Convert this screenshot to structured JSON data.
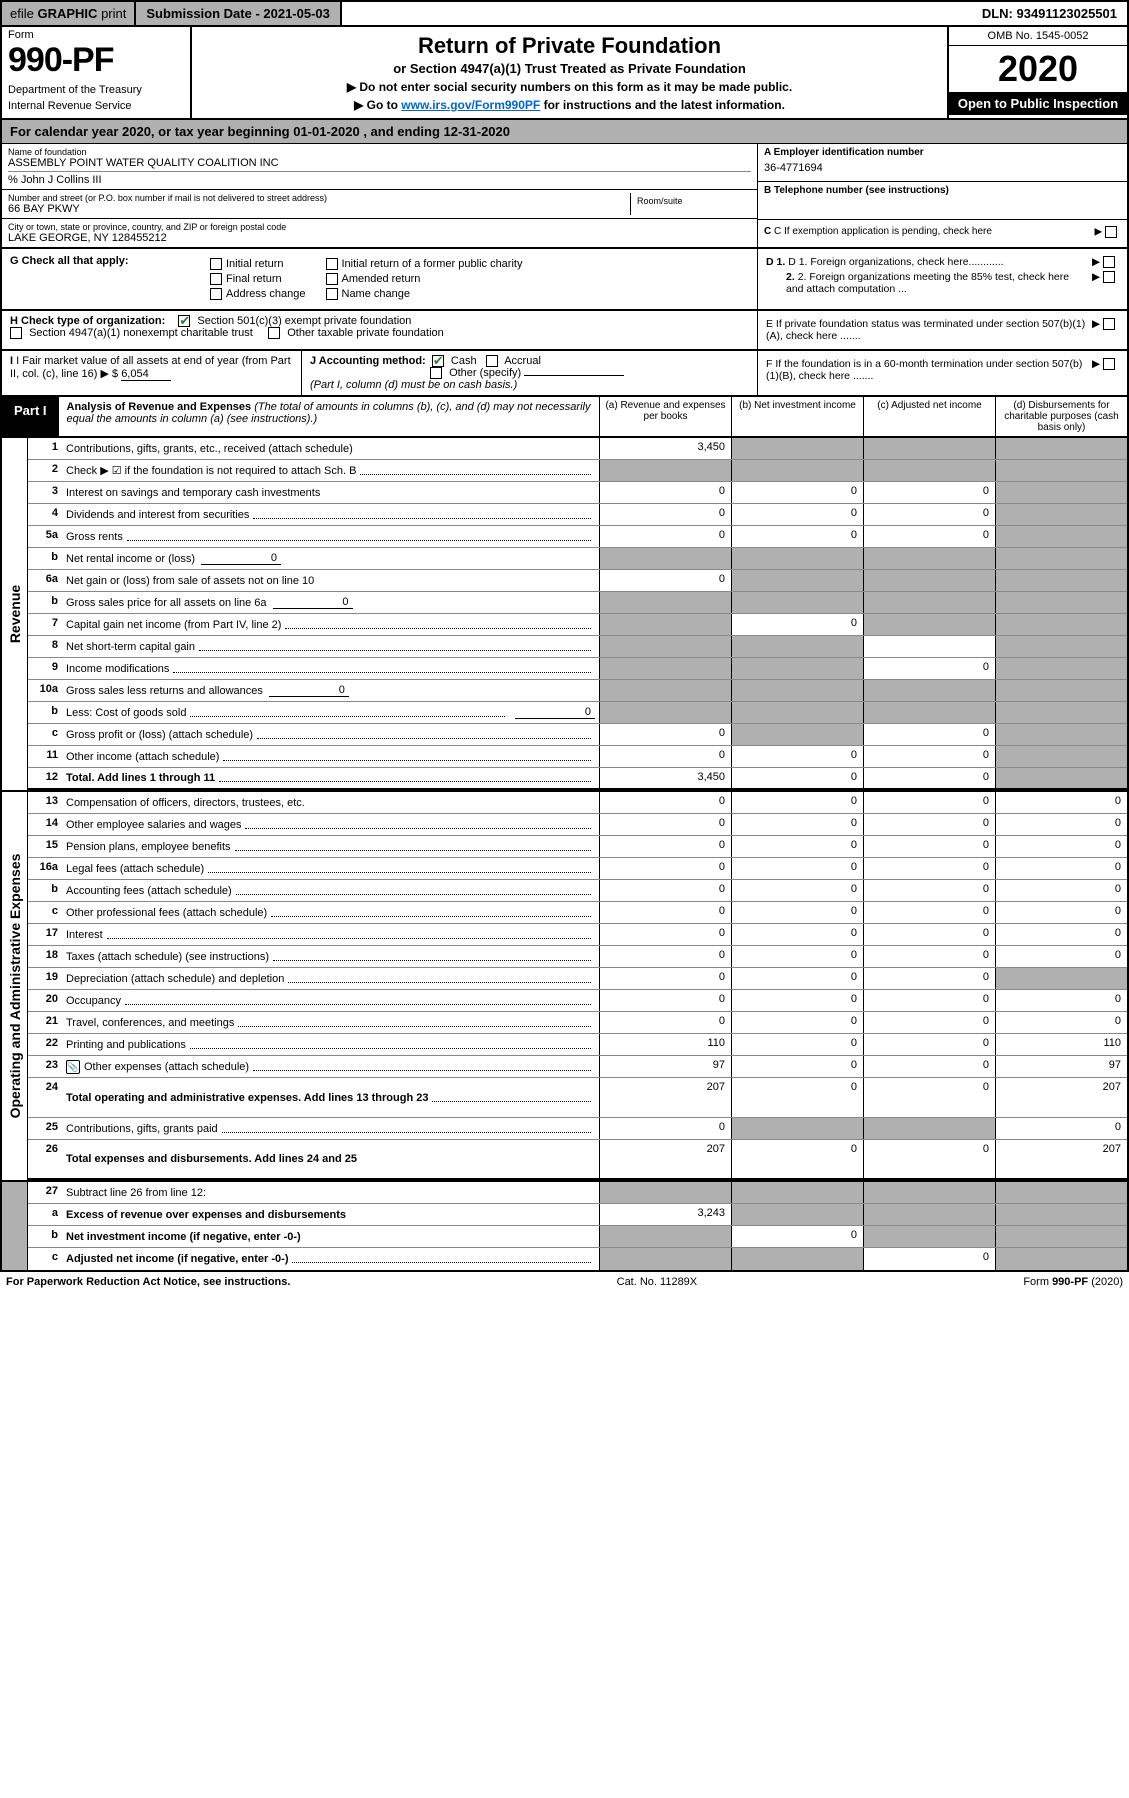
{
  "top": {
    "efile_prefix": "efile",
    "efile_bold": "GRAPHIC",
    "efile_suffix": "print",
    "submission": "Submission Date - 2021-05-03",
    "dln": "DLN: 93491123025501"
  },
  "header": {
    "form_label": "Form",
    "form_number": "990-PF",
    "dept1": "Department of the Treasury",
    "dept2": "Internal Revenue Service",
    "title": "Return of Private Foundation",
    "subtitle": "or Section 4947(a)(1) Trust Treated as Private Foundation",
    "note1": "▶ Do not enter social security numbers on this form as it may be made public.",
    "note2_pre": "▶ Go to ",
    "note2_link": "www.irs.gov/Form990PF",
    "note2_post": " for instructions and the latest information.",
    "omb": "OMB No. 1545-0052",
    "year": "2020",
    "inspect": "Open to Public Inspection"
  },
  "calyear": "For calendar year 2020, or tax year beginning 01-01-2020                              , and ending 12-31-2020",
  "entity": {
    "name_lbl": "Name of foundation",
    "name": "ASSEMBLY POINT WATER QUALITY COALITION INC",
    "care_of": "% John J Collins III",
    "addr_lbl": "Number and street (or P.O. box number if mail is not delivered to street address)",
    "addr": "66 BAY PKWY",
    "room_lbl": "Room/suite",
    "city_lbl": "City or town, state or province, country, and ZIP or foreign postal code",
    "city": "LAKE GEORGE, NY  128455212",
    "a_lbl": "A Employer identification number",
    "ein": "36-4771694",
    "b_lbl": "B Telephone number (see instructions)",
    "c_lbl": "C If exemption application is pending, check here",
    "d1": "D 1. Foreign organizations, check here............",
    "d2": "2. Foreign organizations meeting the 85% test, check here and attach computation ...",
    "e": "E  If private foundation status was terminated under section 507(b)(1)(A), check here .......",
    "f": "F  If the foundation is in a 60-month termination under section 507(b)(1)(B), check here ......."
  },
  "g": {
    "label": "G Check all that apply:",
    "opts": [
      "Initial return",
      "Final return",
      "Address change",
      "Initial return of a former public charity",
      "Amended return",
      "Name change"
    ]
  },
  "h": {
    "label": "H Check type of organization:",
    "opt1": "Section 501(c)(3) exempt private foundation",
    "opt2": "Section 4947(a)(1) nonexempt charitable trust",
    "opt3": "Other taxable private foundation"
  },
  "i": {
    "label": "I Fair market value of all assets at end of year (from Part II, col. (c), line 16)",
    "prefix": "▶ $",
    "value": "6,054"
  },
  "j": {
    "label": "J Accounting method:",
    "cash": "Cash",
    "accrual": "Accrual",
    "other": "Other (specify)",
    "note": "(Part I, column (d) must be on cash basis.)"
  },
  "part1": {
    "label": "Part I",
    "title": "Analysis of Revenue and Expenses",
    "title_note": " (The total of amounts in columns (b), (c), and (d) may not necessarily equal the amounts in column (a) (see instructions).)",
    "col_a": "(a)   Revenue and expenses per books",
    "col_b": "(b)   Net investment income",
    "col_c": "(c)   Adjusted net income",
    "col_d": "(d)  Disbursements for charitable purposes (cash basis only)"
  },
  "side_labels": {
    "revenue": "Revenue",
    "expenses": "Operating and Administrative Expenses"
  },
  "rows": [
    {
      "n": "1",
      "d": "Contributions, gifts, grants, etc., received (attach schedule)",
      "a": "3,450",
      "b": "shade",
      "c": "shade",
      "dd": "shade",
      "dots": false
    },
    {
      "n": "2",
      "d": "Check ▶ ☑ if the foundation is not required to attach Sch. B",
      "a": "shade",
      "b": "shade",
      "c": "shade",
      "dd": "shade",
      "dots": true,
      "bold_not": true
    },
    {
      "n": "3",
      "d": "Interest on savings and temporary cash investments",
      "a": "0",
      "b": "0",
      "c": "0",
      "dd": "shade",
      "dots": false
    },
    {
      "n": "4",
      "d": "Dividends and interest from securities",
      "a": "0",
      "b": "0",
      "c": "0",
      "dd": "shade",
      "dots": true
    },
    {
      "n": "5a",
      "d": "Gross rents",
      "a": "0",
      "b": "0",
      "c": "0",
      "dd": "shade",
      "dots": true
    },
    {
      "n": "b",
      "d": "Net rental income or (loss)",
      "inline": "0",
      "a": "shade",
      "b": "shade",
      "c": "shade",
      "dd": "shade"
    },
    {
      "n": "6a",
      "d": "Net gain or (loss) from sale of assets not on line 10",
      "a": "0",
      "b": "shade",
      "c": "shade",
      "dd": "shade"
    },
    {
      "n": "b",
      "d": "Gross sales price for all assets on line 6a",
      "inline": "0",
      "a": "shade",
      "b": "shade",
      "c": "shade",
      "dd": "shade"
    },
    {
      "n": "7",
      "d": "Capital gain net income (from Part IV, line 2)",
      "a": "shade",
      "b": "0",
      "c": "shade",
      "dd": "shade",
      "dots": true
    },
    {
      "n": "8",
      "d": "Net short-term capital gain",
      "a": "shade",
      "b": "shade",
      "c": "",
      "dd": "shade",
      "dots": true
    },
    {
      "n": "9",
      "d": "Income modifications",
      "a": "shade",
      "b": "shade",
      "c": "0",
      "dd": "shade",
      "dots": true
    },
    {
      "n": "10a",
      "d": "Gross sales less returns and allowances",
      "inline": "0",
      "a": "shade",
      "b": "shade",
      "c": "shade",
      "dd": "shade"
    },
    {
      "n": "b",
      "d": "Less: Cost of goods sold",
      "inline": "0",
      "a": "shade",
      "b": "shade",
      "c": "shade",
      "dd": "shade",
      "dots": true
    },
    {
      "n": "c",
      "d": "Gross profit or (loss) (attach schedule)",
      "a": "0",
      "b": "shade",
      "c": "0",
      "dd": "shade",
      "dots": true
    },
    {
      "n": "11",
      "d": "Other income (attach schedule)",
      "a": "0",
      "b": "0",
      "c": "0",
      "dd": "shade",
      "dots": true
    },
    {
      "n": "12",
      "d": "Total. Add lines 1 through 11",
      "a": "3,450",
      "b": "0",
      "c": "0",
      "dd": "shade",
      "bold": true,
      "dots": true,
      "thick": true
    }
  ],
  "exp_rows": [
    {
      "n": "13",
      "d": "Compensation of officers, directors, trustees, etc.",
      "a": "0",
      "b": "0",
      "c": "0",
      "dd": "0"
    },
    {
      "n": "14",
      "d": "Other employee salaries and wages",
      "a": "0",
      "b": "0",
      "c": "0",
      "dd": "0",
      "dots": true
    },
    {
      "n": "15",
      "d": "Pension plans, employee benefits",
      "a": "0",
      "b": "0",
      "c": "0",
      "dd": "0",
      "dots": true
    },
    {
      "n": "16a",
      "d": "Legal fees (attach schedule)",
      "a": "0",
      "b": "0",
      "c": "0",
      "dd": "0",
      "dots": true
    },
    {
      "n": "b",
      "d": "Accounting fees (attach schedule)",
      "a": "0",
      "b": "0",
      "c": "0",
      "dd": "0",
      "dots": true
    },
    {
      "n": "c",
      "d": "Other professional fees (attach schedule)",
      "a": "0",
      "b": "0",
      "c": "0",
      "dd": "0",
      "dots": true
    },
    {
      "n": "17",
      "d": "Interest",
      "a": "0",
      "b": "0",
      "c": "0",
      "dd": "0",
      "dots": true
    },
    {
      "n": "18",
      "d": "Taxes (attach schedule) (see instructions)",
      "a": "0",
      "b": "0",
      "c": "0",
      "dd": "0",
      "dots": true
    },
    {
      "n": "19",
      "d": "Depreciation (attach schedule) and depletion",
      "a": "0",
      "b": "0",
      "c": "0",
      "dd": "shade",
      "dots": true
    },
    {
      "n": "20",
      "d": "Occupancy",
      "a": "0",
      "b": "0",
      "c": "0",
      "dd": "0",
      "dots": true
    },
    {
      "n": "21",
      "d": "Travel, conferences, and meetings",
      "a": "0",
      "b": "0",
      "c": "0",
      "dd": "0",
      "dots": true
    },
    {
      "n": "22",
      "d": "Printing and publications",
      "a": "110",
      "b": "0",
      "c": "0",
      "dd": "110",
      "dots": true
    },
    {
      "n": "23",
      "d": "Other expenses (attach schedule)",
      "a": "97",
      "b": "0",
      "c": "0",
      "dd": "97",
      "dots": true,
      "attach": true
    },
    {
      "n": "24",
      "d": "Total operating and administrative expenses. Add lines 13 through 23",
      "a": "207",
      "b": "0",
      "c": "0",
      "dd": "207",
      "bold": true,
      "dots": true,
      "tall": true
    },
    {
      "n": "25",
      "d": "Contributions, gifts, grants paid",
      "a": "0",
      "b": "shade",
      "c": "shade",
      "dd": "0",
      "dots": true
    },
    {
      "n": "26",
      "d": "Total expenses and disbursements. Add lines 24 and 25",
      "a": "207",
      "b": "0",
      "c": "0",
      "dd": "207",
      "bold": true,
      "thick": true,
      "tall": true
    }
  ],
  "final_rows": [
    {
      "n": "27",
      "d": "Subtract line 26 from line 12:",
      "a": "shade",
      "b": "shade",
      "c": "shade",
      "dd": "shade"
    },
    {
      "n": "a",
      "d": "Excess of revenue over expenses and disbursements",
      "a": "3,243",
      "b": "shade",
      "c": "shade",
      "dd": "shade",
      "bold": true
    },
    {
      "n": "b",
      "d": "Net investment income (if negative, enter -0-)",
      "a": "shade",
      "b": "0",
      "c": "shade",
      "dd": "shade",
      "bold": true
    },
    {
      "n": "c",
      "d": "Adjusted net income (if negative, enter -0-)",
      "a": "shade",
      "b": "shade",
      "c": "0",
      "dd": "shade",
      "bold": true,
      "dots": true
    }
  ],
  "footer": {
    "left": "For Paperwork Reduction Act Notice, see instructions.",
    "mid": "Cat. No. 11289X",
    "right": "Form 990-PF (2020)"
  }
}
